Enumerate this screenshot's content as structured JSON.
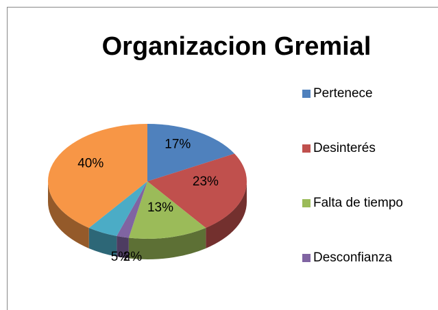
{
  "chart_data": {
    "type": "pie",
    "title": "Organizacion Gremial",
    "categories": [
      "Pertenece",
      "Desinterés",
      "Falta de tiempo",
      "Desconfianza",
      null,
      null
    ],
    "values": [
      17,
      23,
      13,
      2,
      5,
      40
    ],
    "value_labels": [
      "17%",
      "23%",
      "13%",
      "2%",
      "5%",
      "40%"
    ],
    "colors": [
      "#4f81bd",
      "#c0504d",
      "#9bbb59",
      "#8064a2",
      "#4bacc6",
      "#f79646"
    ],
    "legend": "right"
  }
}
